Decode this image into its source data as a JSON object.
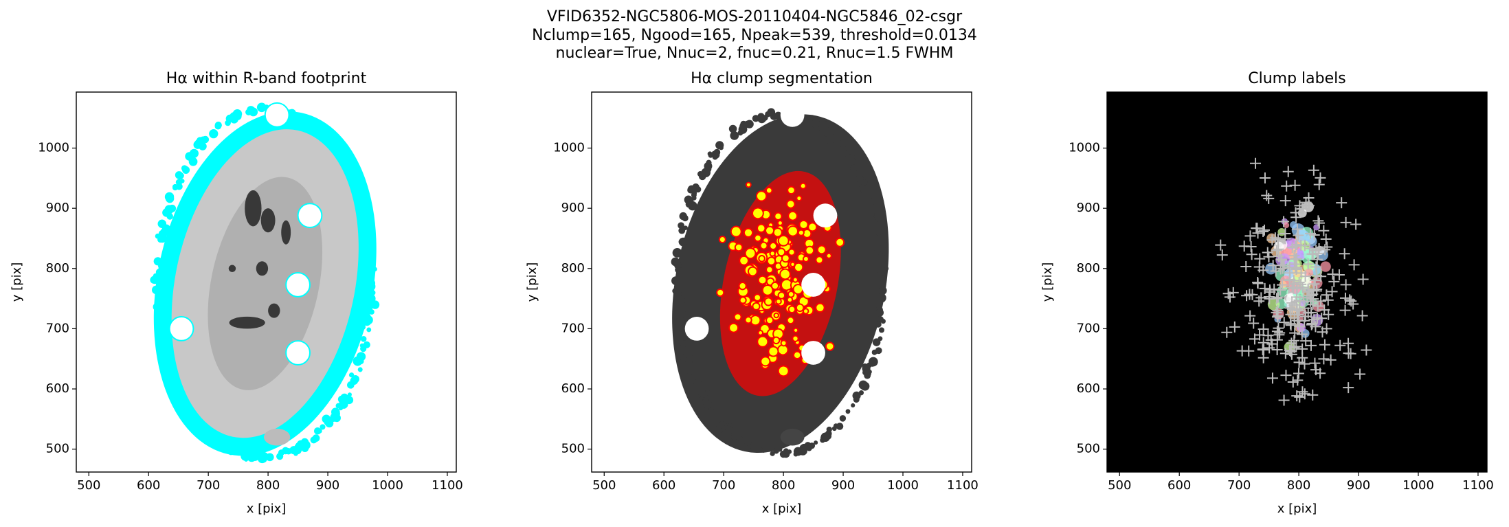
{
  "suptitle": [
    "VFID6352-NGC5806-MOS-20110404-NGC5846_02-csgr",
    "Nclump=165, Ngood=165, Npeak=539, threshold=0.0134",
    "nuclear=True, Nnuc=2, fnuc=0.21, Rnuc=1.5 FWHM"
  ],
  "chart_data": [
    {
      "type": "image",
      "title": "Hα within R-band footprint",
      "xlabel": "x [pix]",
      "ylabel": "y [pix]",
      "xlim": [
        479,
        1115
      ],
      "ylim": [
        462,
        1093
      ],
      "xticks": [
        500,
        600,
        700,
        800,
        900,
        1000,
        1100
      ],
      "yticks": [
        500,
        600,
        700,
        800,
        900,
        1000
      ]
    },
    {
      "type": "image",
      "title": "Hα clump segmentation",
      "xlabel": "x [pix]",
      "ylabel": "y [pix]",
      "xlim": [
        479,
        1115
      ],
      "ylim": [
        462,
        1093
      ],
      "xticks": [
        500,
        600,
        700,
        800,
        900,
        1000,
        1100
      ],
      "yticks": [
        500,
        600,
        700,
        800,
        900,
        1000
      ]
    },
    {
      "type": "image",
      "title": "Clump labels",
      "xlabel": "x [pix]",
      "ylabel": "y [pix]",
      "xlim": [
        479,
        1115
      ],
      "ylim": [
        462,
        1093
      ],
      "xticks": [
        500,
        600,
        700,
        800,
        900,
        1000,
        1100
      ],
      "yticks": [
        500,
        600,
        700,
        800,
        900,
        1000
      ]
    }
  ]
}
